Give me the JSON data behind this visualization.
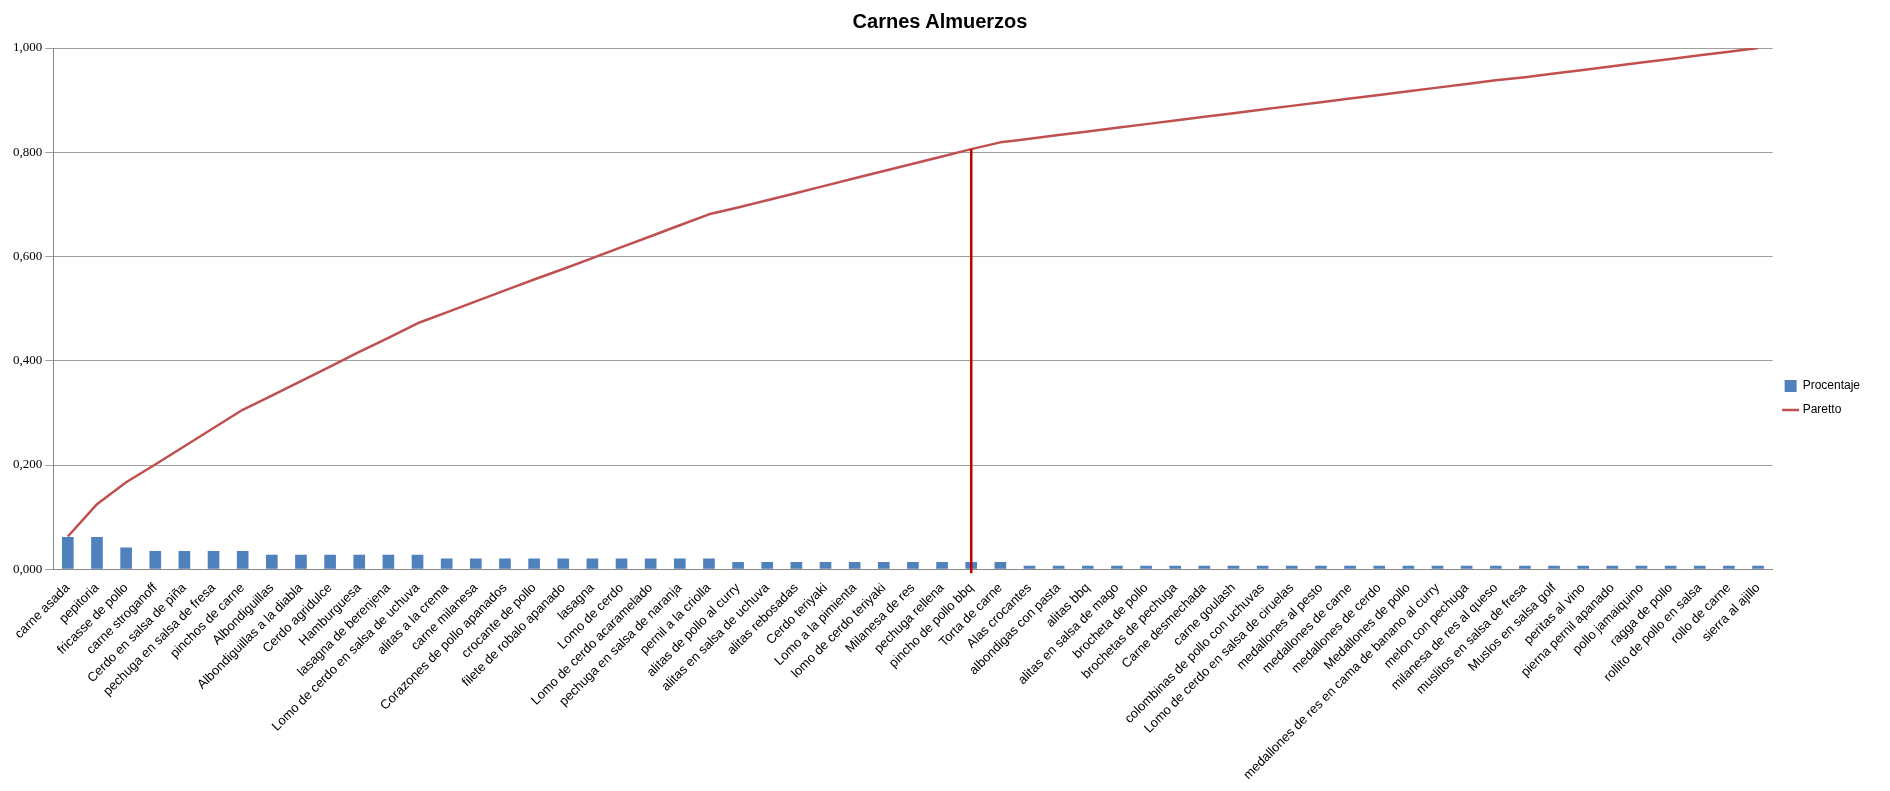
{
  "chart_data": {
    "type": "bar",
    "title": "Carnes Almuerzos",
    "categories": [
      "carne asada",
      "pepitoria",
      "fricasse de pollo",
      "carne stroganoff",
      "Cerdo en salsa de piña",
      "pechuga en salsa de fresa",
      "pinchos de carne",
      "Albondiguillas",
      "Albondiguillas a la diabla",
      "Cerdo agridulce",
      "Hamburguesa",
      "lasagna de berenjena",
      "Lomo de cerdo en salsa de uchuva",
      "alitas a la crema",
      "carne milanesa",
      "Corazones de pollo apanados",
      "crocante de pollo",
      "filete de robalo apanado",
      "lasagna",
      "Lomo de cerdo",
      "Lomo de cerdo acaramelado",
      "pechuga en salsa de naranja",
      "pernil a la criolla",
      "alitas de pollo al curry",
      "alitas en salsa de uchuva",
      "alitas rebosadas",
      "Cerdo teriyaki",
      "Lomo a la pimienta",
      "lomo de cerdo teriyaki",
      "Milanesa de res",
      "pechuga rellena",
      "pincho de pollo bbq",
      "Torta de carne",
      "Alas crocantes",
      "albondigas con pasta",
      "alitas bbq",
      "alitas en salsa de mago",
      "brocheta de pollo",
      "brochetas de pechuga",
      "Carne desmechada",
      "carne goulash",
      "colombinas de pollo con uchuvas",
      "Lomo de cerdo en salsa de ciruelas",
      "medallones al pesto",
      "medallones de carne",
      "medallones de cerdo",
      "Medallones de pollo",
      "medallones de res en cama de banano al curry",
      "melon con pechuga",
      "milanesa de res al queso",
      "muslitos en salsa de fresa",
      "Muslos en salsa golf",
      "peritas al vino",
      "pierna pernil apanado",
      "pollo jamaiquino",
      "ragga de pollo",
      "rollito de pollo en salsa",
      "rollo de carne",
      "sierra al ajillo"
    ],
    "series": [
      {
        "name": "Procentaje",
        "color": "#4f81bd",
        "values": [
          0.062,
          0.062,
          0.042,
          0.035,
          0.035,
          0.035,
          0.035,
          0.028,
          0.028,
          0.028,
          0.028,
          0.028,
          0.028,
          0.021,
          0.021,
          0.021,
          0.021,
          0.021,
          0.021,
          0.021,
          0.021,
          0.021,
          0.021,
          0.014,
          0.014,
          0.014,
          0.014,
          0.014,
          0.014,
          0.014,
          0.014,
          0.014,
          0.014,
          0.007,
          0.007,
          0.007,
          0.007,
          0.007,
          0.007,
          0.007,
          0.007,
          0.007,
          0.007,
          0.007,
          0.007,
          0.007,
          0.007,
          0.007,
          0.007,
          0.007,
          0.007,
          0.007,
          0.007,
          0.007,
          0.007,
          0.007,
          0.007,
          0.007,
          0.007
        ]
      },
      {
        "name": "Paretto",
        "type": "line",
        "color": "#c0504d",
        "values": [
          0.063,
          0.125,
          0.167,
          0.201,
          0.236,
          0.271,
          0.306,
          0.333,
          0.361,
          0.389,
          0.417,
          0.444,
          0.472,
          0.493,
          0.514,
          0.535,
          0.556,
          0.576,
          0.597,
          0.618,
          0.639,
          0.66,
          0.681,
          0.694,
          0.708,
          0.722,
          0.736,
          0.75,
          0.764,
          0.778,
          0.792,
          0.806,
          0.819,
          0.826,
          0.833,
          0.84,
          0.847,
          0.854,
          0.861,
          0.868,
          0.875,
          0.882,
          0.889,
          0.896,
          0.903,
          0.91,
          0.917,
          0.924,
          0.931,
          0.938,
          0.944,
          0.951,
          0.958,
          0.965,
          0.972,
          0.979,
          0.986,
          0.993,
          1.0
        ]
      }
    ],
    "ylim": [
      0,
      1
    ],
    "yticks": [
      {
        "value": 0,
        "label": "0,000"
      },
      {
        "value": 0.2,
        "label": "0,200"
      },
      {
        "value": 0.4,
        "label": "0,400"
      },
      {
        "value": 0.6,
        "label": "0,600"
      },
      {
        "value": 0.8,
        "label": "0,800"
      },
      {
        "value": 1,
        "label": "1,000"
      }
    ],
    "grid": "y",
    "legend": "right",
    "marker": "none",
    "ref_lines": [
      {
        "axis": "x",
        "value": "pincho de pollo bbq",
        "color": "#c00000"
      }
    ]
  }
}
